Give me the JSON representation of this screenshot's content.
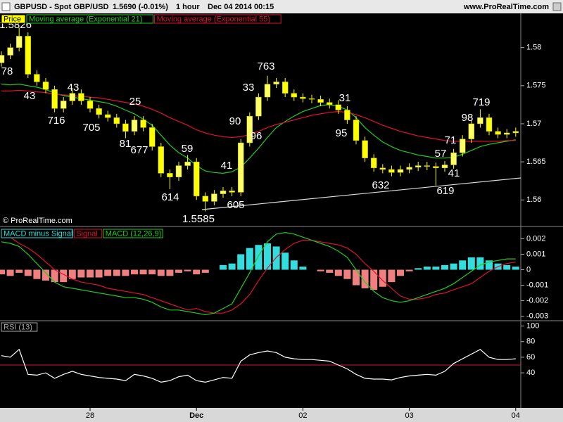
{
  "header": {
    "symbol": "GBPUSD - Spot GBP/USD",
    "quote": "1.5690 (-0.01%)",
    "period": "1 hour",
    "date": "Dec 04 2014 00:15",
    "site": "www.ProRealTime.com",
    "copyright": "© ProRealTime.com"
  },
  "chart_data": [
    {
      "type": "candlestick",
      "name": "Price",
      "color": "#ffff00",
      "categories": [
        null,
        null,
        null,
        null,
        null,
        null,
        null,
        null,
        null,
        null,
        "28",
        null,
        null,
        null,
        null,
        null,
        null,
        null,
        null,
        null,
        null,
        null,
        "Dec",
        null,
        null,
        null,
        null,
        null,
        null,
        null,
        null,
        null,
        null,
        null,
        "02",
        null,
        null,
        null,
        null,
        null,
        null,
        null,
        null,
        null,
        null,
        null,
        "03",
        null,
        null,
        null,
        null,
        null,
        null,
        null,
        null,
        null,
        null,
        null,
        "04"
      ],
      "open": [
        1.578,
        1.579,
        1.58,
        1.5815,
        1.5765,
        1.5755,
        1.5745,
        1.572,
        1.573,
        1.574,
        1.573,
        1.572,
        1.5712,
        1.5708,
        1.57,
        1.569,
        1.5705,
        1.5695,
        1.567,
        1.5635,
        1.563,
        1.5645,
        1.565,
        1.5605,
        1.5598,
        1.5608,
        1.5612,
        1.561,
        1.5675,
        1.571,
        1.5735,
        1.5752,
        1.5755,
        1.574,
        1.5735,
        1.5733,
        1.5732,
        1.5728,
        1.5725,
        1.5718,
        1.5705,
        1.5678,
        1.5655,
        1.5642,
        1.564,
        1.5636,
        1.564,
        1.5643,
        1.5645,
        1.5644,
        1.5642,
        1.5646,
        1.5662,
        1.568,
        1.57,
        1.5708,
        1.569,
        1.5686,
        1.5688
      ],
      "high": [
        1.5795,
        1.5805,
        1.5826,
        1.582,
        1.577,
        1.576,
        1.575,
        1.5735,
        1.5745,
        1.5745,
        1.5735,
        1.5725,
        1.5717,
        1.5713,
        1.5705,
        1.571,
        1.571,
        1.57,
        1.5675,
        1.564,
        1.565,
        1.5659,
        1.5655,
        1.561,
        1.5613,
        1.5617,
        1.5617,
        1.568,
        1.5715,
        1.574,
        1.5763,
        1.576,
        1.576,
        1.5745,
        1.574,
        1.5738,
        1.5737,
        1.5733,
        1.5731,
        1.5723,
        1.571,
        1.5683,
        1.566,
        1.5647,
        1.5645,
        1.5645,
        1.5648,
        1.565,
        1.565,
        1.5649,
        1.5651,
        1.5667,
        1.5685,
        1.5705,
        1.5719,
        1.5713,
        1.5695,
        1.5693,
        1.5695
      ],
      "low": [
        1.5775,
        1.5785,
        1.5795,
        1.576,
        1.575,
        1.574,
        1.5715,
        1.5715,
        1.5725,
        1.5725,
        1.5715,
        1.5707,
        1.5703,
        1.5695,
        1.5681,
        1.5685,
        1.569,
        1.5665,
        1.563,
        1.5614,
        1.5625,
        1.564,
        1.56,
        1.5585,
        1.5593,
        1.5603,
        1.5605,
        1.5605,
        1.567,
        1.5705,
        1.573,
        1.5747,
        1.5735,
        1.573,
        1.5728,
        1.5727,
        1.5723,
        1.572,
        1.5713,
        1.57,
        1.5673,
        1.565,
        1.5637,
        1.5635,
        1.5631,
        1.5631,
        1.5635,
        1.5638,
        1.5639,
        1.5619,
        1.5637,
        1.5641,
        1.5657,
        1.5675,
        1.5695,
        1.5685,
        1.5681,
        1.5681,
        1.5683
      ],
      "close": [
        1.579,
        1.58,
        1.5815,
        1.5765,
        1.5755,
        1.5745,
        1.572,
        1.573,
        1.574,
        1.573,
        1.572,
        1.5712,
        1.5708,
        1.57,
        1.569,
        1.5705,
        1.5695,
        1.567,
        1.5635,
        1.563,
        1.5645,
        1.565,
        1.5605,
        1.5598,
        1.5608,
        1.5612,
        1.561,
        1.5675,
        1.571,
        1.5735,
        1.5752,
        1.5755,
        1.574,
        1.5735,
        1.5733,
        1.5732,
        1.5728,
        1.5725,
        1.5718,
        1.5705,
        1.5678,
        1.5655,
        1.5642,
        1.564,
        1.5636,
        1.564,
        1.5643,
        1.5645,
        1.5644,
        1.5642,
        1.5646,
        1.5662,
        1.568,
        1.57,
        1.5708,
        1.569,
        1.5686,
        1.5688,
        1.569
      ],
      "series": [
        {
          "name": "Moving average (Exponential 21)",
          "color": "#22cc22",
          "values": [
            1.5752,
            1.5751,
            1.5752,
            1.575,
            1.5748,
            1.5745,
            1.574,
            1.5737,
            1.5735,
            1.5733,
            1.5731,
            1.5729,
            1.5727,
            1.5723,
            1.5718,
            1.5713,
            1.5706,
            1.5698,
            1.5685,
            1.5672,
            1.5662,
            1.5655,
            1.5645,
            1.5638,
            1.5636,
            1.5635,
            1.5637,
            1.5643,
            1.5655,
            1.5668,
            1.5682,
            1.5695,
            1.5703,
            1.571,
            1.5716,
            1.572,
            1.5724,
            1.5725,
            1.5723,
            1.5718,
            1.5708,
            1.5695,
            1.5685,
            1.5676,
            1.567,
            1.5665,
            1.5662,
            1.5659,
            1.5657,
            1.5655,
            1.5655,
            1.5656,
            1.566,
            1.5665,
            1.567,
            1.5673,
            1.5675,
            1.5677,
            1.5679
          ]
        },
        {
          "name": "Moving average (Exponential 55)",
          "color": "#dd1133",
          "values": [
            1.5743,
            1.5743,
            1.5744,
            1.5743,
            1.5742,
            1.5741,
            1.5739,
            1.5738,
            1.5737,
            1.5736,
            1.5735,
            1.5734,
            1.5732,
            1.573,
            1.5728,
            1.5726,
            1.5723,
            1.5719,
            1.5714,
            1.5708,
            1.5703,
            1.5698,
            1.5692,
            1.5688,
            1.5685,
            1.5683,
            1.5682,
            1.5683,
            1.5686,
            1.569,
            1.5695,
            1.5699,
            1.5702,
            1.5705,
            1.5708,
            1.5711,
            1.5713,
            1.5715,
            1.5716,
            1.5715,
            1.5712,
            1.5708,
            1.5703,
            1.5698,
            1.5694,
            1.569,
            1.5687,
            1.5684,
            1.5682,
            1.568,
            1.5678,
            1.5677,
            1.5677,
            1.5677,
            1.5677,
            1.5677,
            1.5677,
            1.5678,
            1.5678
          ]
        }
      ],
      "ylim": [
        1.5567,
        1.5844
      ],
      "yticks": [
        1.56,
        1.565,
        1.57,
        1.575,
        1.58
      ],
      "annotations": [
        "1.5826",
        "78",
        "43",
        "716",
        "43",
        "705",
        "25",
        "81",
        "677",
        "59",
        "614",
        "41",
        "605",
        "1.5585",
        "90",
        "96",
        "33",
        "763",
        "31",
        "95",
        "632",
        "57",
        "41",
        "619",
        "71",
        "98",
        "719"
      ]
    },
    {
      "type": "macd",
      "series": [
        {
          "name": "MACD minus Signal",
          "color": "#33dddd",
          "negative_color": "#f08080",
          "values": [
            -0.0003,
            -0.0004,
            -0.0002,
            -0.0004,
            -0.0006,
            -0.0007,
            -0.0008,
            -0.0008,
            -0.0006,
            -0.0005,
            -0.0005,
            -0.0005,
            -0.0004,
            -0.0004,
            -0.0004,
            -0.0003,
            -0.0003,
            -0.0003,
            -0.0004,
            -0.0004,
            -0.0002,
            -0.0001,
            -0.0003,
            -0.0002,
            0.0,
            0.0003,
            0.0004,
            0.001,
            0.0014,
            0.0016,
            0.0017,
            0.0015,
            0.0011,
            0.0006,
            0.0002,
            0.0,
            -0.0001,
            -0.0002,
            -0.0004,
            -0.0006,
            -0.001,
            -0.0012,
            -0.0013,
            -0.0011,
            -0.0008,
            -0.0004,
            -0.0001,
            0.0001,
            0.0002,
            0.0002,
            0.0003,
            0.0004,
            0.0006,
            0.0008,
            0.0008,
            0.0006,
            0.0004,
            0.0003,
            0.0002
          ]
        },
        {
          "name": "Signal",
          "color": "#dd1133",
          "values": [
            0.0021,
            0.0021,
            0.0017,
            0.0014,
            0.001,
            0.0005,
            0.0,
            -0.0003,
            -0.0006,
            -0.0008,
            -0.0009,
            -0.001,
            -0.0012,
            -0.0013,
            -0.0014,
            -0.0015,
            -0.0016,
            -0.0018,
            -0.002,
            -0.0022,
            -0.0024,
            -0.0026,
            -0.0025,
            -0.0027,
            -0.0028,
            -0.0028,
            -0.0026,
            -0.0022,
            -0.0016,
            -0.0007,
            0.0001,
            0.0008,
            0.0013,
            0.0017,
            0.0019,
            0.0019,
            0.0018,
            0.0017,
            0.0016,
            0.0014,
            0.001,
            0.0004,
            -0.0001,
            -0.0007,
            -0.0012,
            -0.0017,
            -0.0019,
            -0.0019,
            -0.0018,
            -0.0016,
            -0.0015,
            -0.0013,
            -0.0011,
            -0.0009,
            -0.0005,
            -0.0001,
            0.0002,
            0.0004,
            0.0005
          ]
        },
        {
          "name": "MACD (12,26,9)",
          "color": "#22cc22",
          "values": [
            0.0018,
            0.0017,
            0.0015,
            0.001,
            0.0004,
            -0.0002,
            -0.0008,
            -0.0011,
            -0.0012,
            -0.0013,
            -0.0014,
            -0.0015,
            -0.0016,
            -0.0017,
            -0.0018,
            -0.0018,
            -0.0019,
            -0.0021,
            -0.0024,
            -0.0026,
            -0.0026,
            -0.0027,
            -0.0028,
            -0.0029,
            -0.0028,
            -0.0025,
            -0.0022,
            -0.0012,
            -0.0002,
            0.0009,
            0.0018,
            0.0023,
            0.0024,
            0.0023,
            0.0021,
            0.0019,
            0.0017,
            0.0015,
            0.0012,
            0.0008,
            0.0,
            -0.0008,
            -0.0014,
            -0.0018,
            -0.002,
            -0.0021,
            -0.002,
            -0.0018,
            -0.0016,
            -0.0014,
            -0.0012,
            -0.0009,
            -0.0005,
            -0.0001,
            0.0003,
            0.0005,
            0.0006,
            0.0007,
            0.0007
          ]
        }
      ],
      "ylim": [
        -0.0032,
        0.0027
      ],
      "yticks": [
        0.002,
        0.001,
        0,
        -0.001,
        -0.002,
        -0.003
      ]
    },
    {
      "type": "line",
      "series": [
        {
          "name": "RSI (13)",
          "color": "#ffffff",
          "values": [
            62,
            60,
            70,
            38,
            37,
            40,
            33,
            38,
            42,
            38,
            36,
            34,
            33,
            32,
            30,
            38,
            36,
            33,
            28,
            30,
            35,
            37,
            30,
            28,
            31,
            34,
            33,
            55,
            63,
            66,
            68,
            66,
            60,
            58,
            57,
            57,
            56,
            55,
            50,
            45,
            38,
            33,
            32,
            32,
            31,
            34,
            36,
            37,
            38,
            37,
            42,
            52,
            58,
            64,
            70,
            60,
            57,
            57,
            58
          ]
        }
      ],
      "level": 50,
      "level_color": "#dd1133",
      "ylim": [
        -5,
        105
      ],
      "yticks": [
        40,
        60,
        80,
        100
      ]
    }
  ]
}
